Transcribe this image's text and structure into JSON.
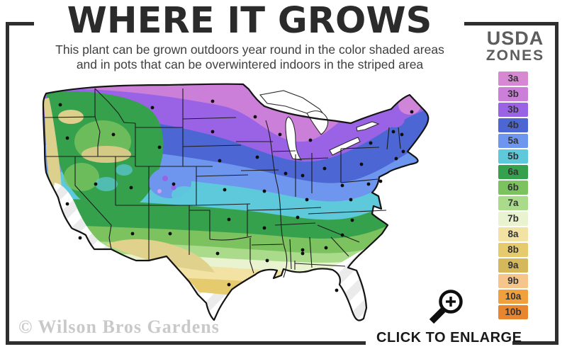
{
  "header": {
    "title": "WHERE IT GROWS",
    "subtitle_line1": "This plant can be grown outdoors year round in the color shaded areas",
    "subtitle_line2": "and in pots that can be overwintered indoors in the striped area"
  },
  "legend": {
    "title_line1": "USDA",
    "title_line2": "ZONES",
    "zones": [
      {
        "label": "3a",
        "color": "#d688d2"
      },
      {
        "label": "3b",
        "color": "#cb7fd9"
      },
      {
        "label": "3b",
        "color": "#9a63e6"
      },
      {
        "label": "4b",
        "color": "#4c66d3"
      },
      {
        "label": "5a",
        "color": "#6f96ef"
      },
      {
        "label": "5b",
        "color": "#5dc9db"
      },
      {
        "label": "6a",
        "color": "#36a14c"
      },
      {
        "label": "6b",
        "color": "#7cc360"
      },
      {
        "label": "7a",
        "color": "#aadb8a"
      },
      {
        "label": "7b",
        "color": "#e9f3cf"
      },
      {
        "label": "8a",
        "color": "#f2e3a4"
      },
      {
        "label": "8b",
        "color": "#e5ca6e"
      },
      {
        "label": "9a",
        "color": "#d5b85c"
      },
      {
        "label": "9b",
        "color": "#f5c58b"
      },
      {
        "label": "10a",
        "color": "#f0a13e"
      },
      {
        "label": "10b",
        "color": "#e8862f"
      }
    ]
  },
  "footer": {
    "watermark": "© Wilson Bros Gardens",
    "enlarge_label": "CLICK TO ENLARGE"
  },
  "icons": {
    "magnifier": "magnifying-glass-plus"
  },
  "frame_color": "#2e2e2e"
}
